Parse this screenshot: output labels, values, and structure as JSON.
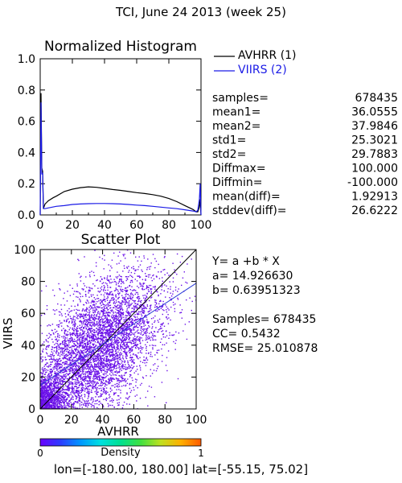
{
  "page_title": "TCI,  June 24 2013 (week 25)",
  "colors": {
    "avhrr": "#000000",
    "viirs": "#1a1ae6",
    "scatter": "#6a10e8",
    "fit": "#2a3ad8"
  },
  "stats": [
    {
      "label": "samples=",
      "value": "678435"
    },
    {
      "label": "mean1=",
      "value": "36.0555"
    },
    {
      "label": "mean2=",
      "value": "37.9846"
    },
    {
      "label": "std1=",
      "value": "25.3021"
    },
    {
      "label": "std2=",
      "value": "29.7883"
    },
    {
      "label": "Diffmax=",
      "value": "100.000"
    },
    {
      "label": "Diffmin=",
      "value": "-100.000"
    },
    {
      "label": "mean(diff)=",
      "value": "1.92913"
    },
    {
      "label": "stddev(diff)=",
      "value": "26.6222"
    }
  ],
  "regression": {
    "equation": "Y= a +b * X",
    "a_line": "a= 14.926630",
    "b_line": "b= 0.63951323",
    "samples_line": "Samples= 678435",
    "cc_line": "CC=  0.5432",
    "rmse_line": "RMSE= 25.010878"
  },
  "colorbar": {
    "label": "Density",
    "min_label": "0",
    "max_label": "1",
    "colors": [
      "#6a00ff",
      "#2d3bff",
      "#0096ff",
      "#00e0e0",
      "#00e090",
      "#40e040",
      "#c0e020",
      "#ffb000",
      "#ff5a00"
    ]
  },
  "footer": "lon=[-180.00, 180.00] lat=[-55.15, 75.02]",
  "chart_data": [
    {
      "type": "line",
      "title": "Normalized Histogram",
      "xlim": [
        0,
        100
      ],
      "ylim": [
        0,
        1.0
      ],
      "x_ticks": [
        0,
        20,
        40,
        60,
        80,
        100
      ],
      "y_ticks": [
        "0.0",
        "0.2",
        "0.4",
        "0.6",
        "0.8",
        "1.0"
      ],
      "legend_position": "right",
      "series": [
        {
          "name": "AVHRR (1)",
          "x": [
            0,
            0.5,
            1,
            1.5,
            2,
            3,
            4,
            5,
            8,
            10,
            15,
            20,
            25,
            30,
            35,
            40,
            45,
            50,
            55,
            60,
            65,
            70,
            75,
            80,
            85,
            90,
            95,
            97,
            98,
            99,
            99.5,
            100
          ],
          "y": [
            0,
            0.78,
            0.3,
            0.28,
            0.04,
            0.07,
            0.08,
            0.09,
            0.11,
            0.12,
            0.15,
            0.165,
            0.175,
            0.18,
            0.177,
            0.17,
            0.163,
            0.157,
            0.15,
            0.143,
            0.137,
            0.13,
            0.12,
            0.105,
            0.085,
            0.06,
            0.035,
            0.02,
            0.02,
            0.05,
            0.1,
            0
          ]
        },
        {
          "name": "VIIRS (2)",
          "x": [
            0,
            0.5,
            1,
            1.5,
            2,
            3,
            5,
            10,
            15,
            20,
            25,
            30,
            35,
            40,
            45,
            50,
            55,
            60,
            65,
            70,
            75,
            80,
            85,
            90,
            95,
            97,
            98,
            99,
            99.5,
            100
          ],
          "y": [
            0,
            0.72,
            0.26,
            0.27,
            0.04,
            0.04,
            0.045,
            0.055,
            0.06,
            0.067,
            0.07,
            0.072,
            0.073,
            0.073,
            0.072,
            0.07,
            0.067,
            0.063,
            0.06,
            0.055,
            0.05,
            0.045,
            0.04,
            0.033,
            0.025,
            0.02,
            0.03,
            0.1,
            0.2,
            0
          ]
        }
      ]
    },
    {
      "type": "scatter",
      "title": "Scatter Plot",
      "xlabel": "AVHRR",
      "ylabel": "VIIRS",
      "xlim": [
        0,
        100
      ],
      "ylim": [
        0,
        100
      ],
      "x_ticks": [
        0,
        20,
        40,
        60,
        80,
        100
      ],
      "y_ticks": [
        0,
        20,
        40,
        60,
        80,
        100
      ],
      "fit": {
        "a": 14.92663,
        "b": 0.63951323
      },
      "identity_line": true,
      "mean_x": 36.0555,
      "mean_y": 37.9846,
      "std_x": 25.3021,
      "std_y": 29.7883,
      "correlation": 0.5432
    }
  ]
}
